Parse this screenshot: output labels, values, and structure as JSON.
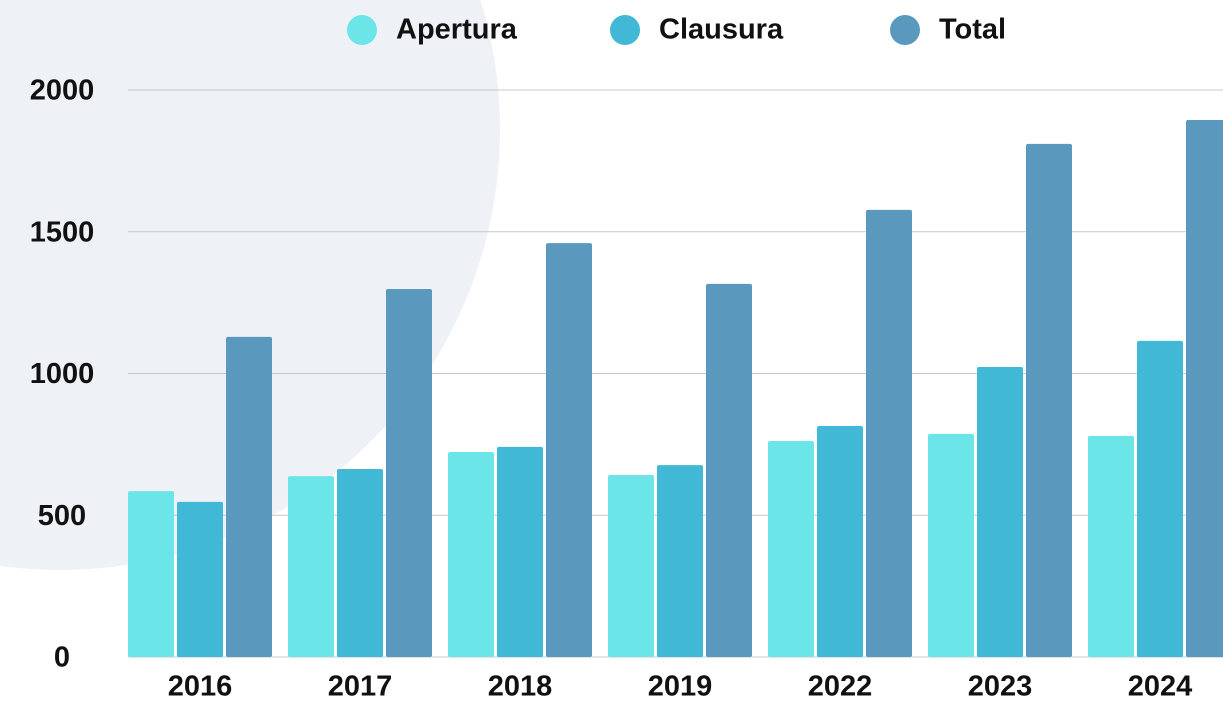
{
  "chart_data": {
    "type": "bar",
    "categories": [
      "2016",
      "2017",
      "2018",
      "2019",
      "2022",
      "2023",
      "2024"
    ],
    "series": [
      {
        "name": "Apertura",
        "color": "#6ce5e8",
        "values": [
          585,
          638,
          723,
          642,
          762,
          787,
          780
        ]
      },
      {
        "name": "Clausura",
        "color": "#41b8d5",
        "values": [
          547,
          663,
          741,
          677,
          815,
          1023,
          1115
        ]
      },
      {
        "name": "Total",
        "color": "#5a98bd",
        "values": [
          1129,
          1298,
          1460,
          1316,
          1577,
          1810,
          1894
        ]
      }
    ],
    "ylim": [
      0,
      2000
    ],
    "yticks": [
      0,
      500,
      1000,
      1500,
      2000
    ],
    "grid": true,
    "legend": "top"
  }
}
